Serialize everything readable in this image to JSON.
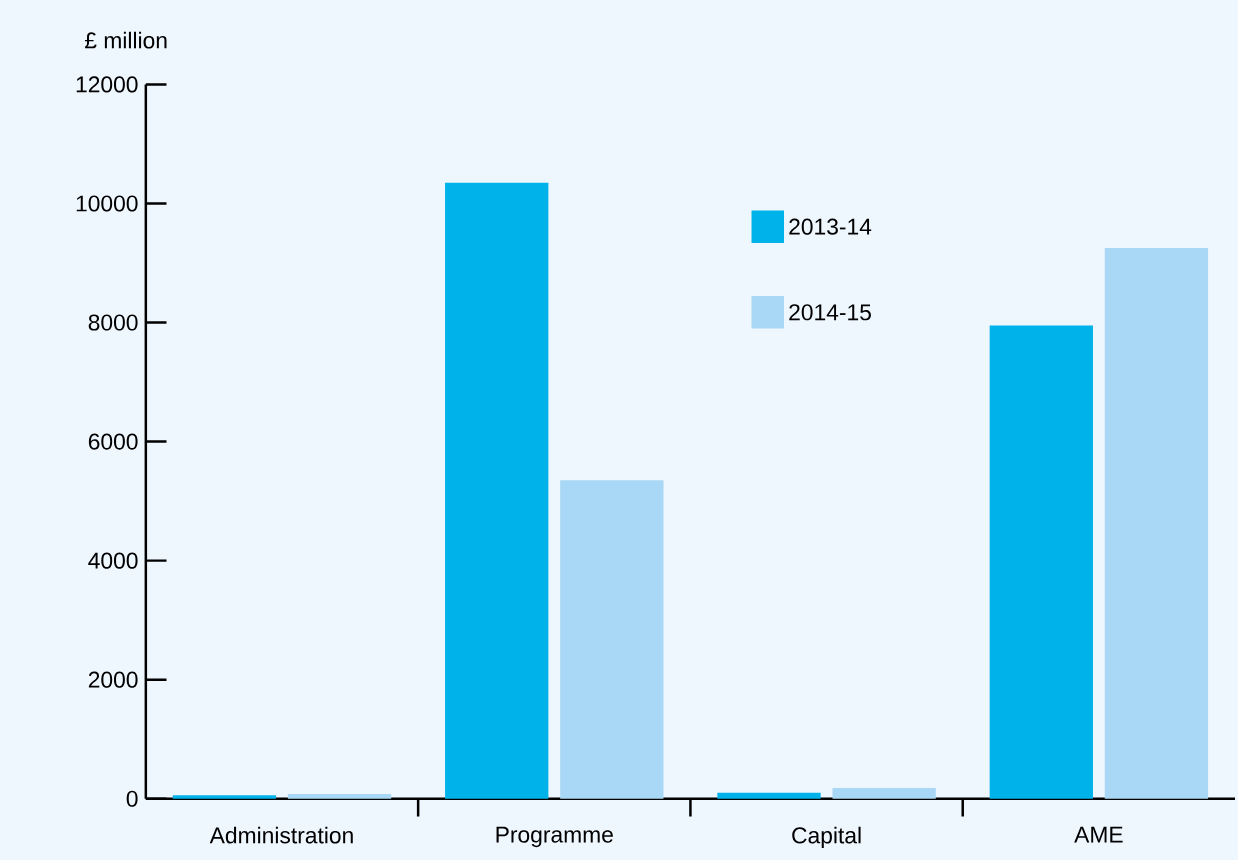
{
  "chart_data": {
    "type": "bar",
    "ylabel": "£ million",
    "categories": [
      "Administration",
      "Programme",
      "Capital",
      "AME"
    ],
    "series": [
      {
        "name": "2013-14",
        "color": "#00b2ea",
        "values": [
          60,
          10350,
          100,
          7950
        ]
      },
      {
        "name": "2014-15",
        "color": "#a8d8f5",
        "values": [
          80,
          5350,
          180,
          9250
        ]
      }
    ],
    "ylim": [
      0,
      12000
    ],
    "yticks": [
      0,
      2000,
      4000,
      6000,
      8000,
      10000,
      12000
    ],
    "grid": false,
    "legend": "top right"
  }
}
